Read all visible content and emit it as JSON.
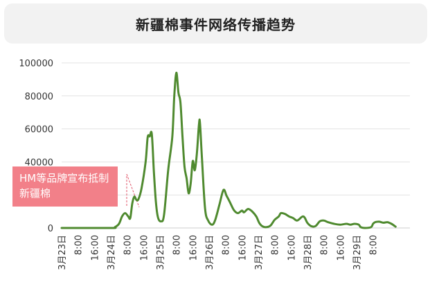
{
  "title": "新疆棉事件网络传播趋势",
  "annotation": {
    "text": "HM等品牌宣布抵制新疆棉",
    "x": "3月24日 12:00"
  },
  "colors": {
    "line": "#4f8a2f",
    "annotation_bg": "#f28089",
    "annotation_dash": "#e0566a",
    "grid": "#e3e3e3",
    "title_bg": "#f2f2f2"
  },
  "chart_data": {
    "type": "line",
    "title": "新疆棉事件网络传播趋势",
    "xlabel": "",
    "ylabel": "",
    "ylim": [
      0,
      100000
    ],
    "yticks": [
      0,
      20000,
      40000,
      60000,
      80000,
      100000
    ],
    "ytick_labels": [
      "0",
      "20000",
      "40000",
      "60000",
      "80000",
      "100000"
    ],
    "xrange_hours": [
      0,
      170
    ],
    "xticks": [
      {
        "hour": 0,
        "label": "3月23日"
      },
      {
        "hour": 8,
        "label": "8:00"
      },
      {
        "hour": 16,
        "label": "16:00"
      },
      {
        "hour": 24,
        "label": "3月24日"
      },
      {
        "hour": 32,
        "label": "8:00"
      },
      {
        "hour": 40,
        "label": "16:00"
      },
      {
        "hour": 48,
        "label": "3月25日"
      },
      {
        "hour": 56,
        "label": "8:00"
      },
      {
        "hour": 64,
        "label": "16:00"
      },
      {
        "hour": 72,
        "label": "3月26日"
      },
      {
        "hour": 80,
        "label": "8:00"
      },
      {
        "hour": 88,
        "label": "16:00"
      },
      {
        "hour": 96,
        "label": "3月27日"
      },
      {
        "hour": 104,
        "label": "8:00"
      },
      {
        "hour": 112,
        "label": "16:00"
      },
      {
        "hour": 120,
        "label": "3月28日"
      },
      {
        "hour": 128,
        "label": "8:00"
      },
      {
        "hour": 136,
        "label": "16:00"
      },
      {
        "hour": 144,
        "label": "3月29日"
      },
      {
        "hour": 152,
        "label": "8:00"
      }
    ],
    "grid": "horizontal",
    "series": [
      {
        "points": [
          [
            0,
            0
          ],
          [
            24,
            0
          ],
          [
            26,
            500
          ],
          [
            28,
            2500
          ],
          [
            29.5,
            7000
          ],
          [
            31,
            9000
          ],
          [
            32.5,
            7000
          ],
          [
            33.5,
            6000
          ],
          [
            34.5,
            15000
          ],
          [
            35.5,
            19000
          ],
          [
            36.5,
            17000
          ],
          [
            37.5,
            17500
          ],
          [
            39,
            24000
          ],
          [
            41,
            40000
          ],
          [
            42,
            55000
          ],
          [
            43,
            55500
          ],
          [
            44,
            57000
          ],
          [
            45,
            35000
          ],
          [
            46,
            16000
          ],
          [
            47,
            6500
          ],
          [
            48.5,
            4000
          ],
          [
            50,
            8000
          ],
          [
            52,
            35000
          ],
          [
            54,
            55000
          ],
          [
            55,
            80000
          ],
          [
            56,
            94000
          ],
          [
            57,
            82000
          ],
          [
            58,
            76000
          ],
          [
            59,
            55000
          ],
          [
            60,
            37000
          ],
          [
            61,
            30000
          ],
          [
            62,
            21000
          ],
          [
            63,
            27000
          ],
          [
            64,
            40500
          ],
          [
            65,
            35000
          ],
          [
            66,
            45000
          ],
          [
            67,
            62000
          ],
          [
            67.5,
            64000
          ],
          [
            68.5,
            42000
          ],
          [
            70,
            12000
          ],
          [
            71.5,
            4500
          ],
          [
            73.5,
            2000
          ],
          [
            75,
            5000
          ],
          [
            77,
            14000
          ],
          [
            79,
            23000
          ],
          [
            80.5,
            19500
          ],
          [
            82,
            16000
          ],
          [
            84,
            11000
          ],
          [
            86,
            9000
          ],
          [
            88,
            10500
          ],
          [
            89,
            9500
          ],
          [
            91,
            11500
          ],
          [
            93,
            10000
          ],
          [
            95,
            7000
          ],
          [
            96.5,
            3000
          ],
          [
            98,
            1000
          ],
          [
            100,
            500
          ],
          [
            102,
            1500
          ],
          [
            104,
            5000
          ],
          [
            106,
            7000
          ],
          [
            107,
            9000
          ],
          [
            109,
            8500
          ],
          [
            111,
            7000
          ],
          [
            113,
            6000
          ],
          [
            115,
            4500
          ],
          [
            118,
            7000
          ],
          [
            120,
            3000
          ],
          [
            122,
            1000
          ],
          [
            124,
            1200
          ],
          [
            126,
            4000
          ],
          [
            128,
            4500
          ],
          [
            130,
            3500
          ],
          [
            133,
            2500
          ],
          [
            136,
            2000
          ],
          [
            139,
            2500
          ],
          [
            141,
            2000
          ],
          [
            143,
            2500
          ],
          [
            145,
            2000
          ],
          [
            146,
            500
          ],
          [
            148,
            0
          ],
          [
            151,
            500
          ],
          [
            152,
            2500
          ],
          [
            153,
            3500
          ],
          [
            155,
            3800
          ],
          [
            157,
            3200
          ],
          [
            159,
            3500
          ],
          [
            161,
            2500
          ],
          [
            163,
            800
          ]
        ]
      }
    ]
  }
}
